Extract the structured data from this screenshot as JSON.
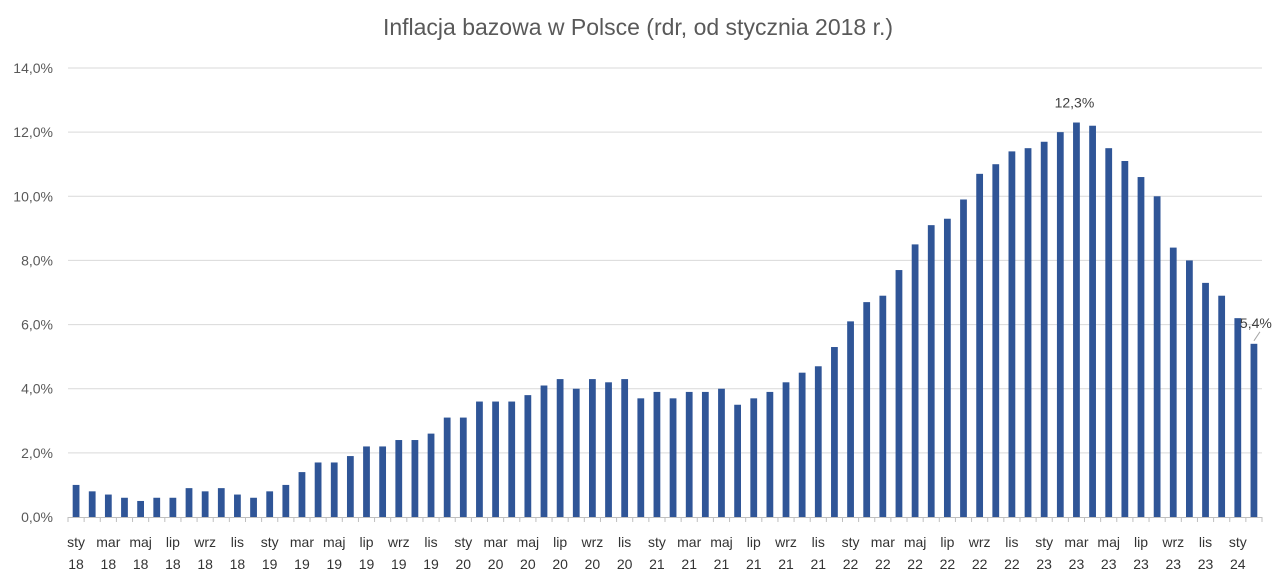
{
  "chart_data": {
    "type": "bar",
    "title": "Inflacja bazowa w Polsce (rdr, od stycznia 2018 r.)",
    "xlabel": "",
    "ylabel": "",
    "ylim": [
      0,
      14
    ],
    "y_ticks": [
      "0,0%",
      "2,0%",
      "4,0%",
      "6,0%",
      "8,0%",
      "10,0%",
      "12,0%",
      "14,0%"
    ],
    "grid": true,
    "legend": "none",
    "color": "#2f5597",
    "categories": [
      "2018-01",
      "2018-02",
      "2018-03",
      "2018-04",
      "2018-05",
      "2018-06",
      "2018-07",
      "2018-08",
      "2018-09",
      "2018-10",
      "2018-11",
      "2018-12",
      "2019-01",
      "2019-02",
      "2019-03",
      "2019-04",
      "2019-05",
      "2019-06",
      "2019-07",
      "2019-08",
      "2019-09",
      "2019-10",
      "2019-11",
      "2019-12",
      "2020-01",
      "2020-02",
      "2020-03",
      "2020-04",
      "2020-05",
      "2020-06",
      "2020-07",
      "2020-08",
      "2020-09",
      "2020-10",
      "2020-11",
      "2020-12",
      "2021-01",
      "2021-02",
      "2021-03",
      "2021-04",
      "2021-05",
      "2021-06",
      "2021-07",
      "2021-08",
      "2021-09",
      "2021-10",
      "2021-11",
      "2021-12",
      "2022-01",
      "2022-02",
      "2022-03",
      "2022-04",
      "2022-05",
      "2022-06",
      "2022-07",
      "2022-08",
      "2022-09",
      "2022-10",
      "2022-11",
      "2022-12",
      "2023-01",
      "2023-02",
      "2023-03",
      "2023-04",
      "2023-05",
      "2023-06",
      "2023-07",
      "2023-08",
      "2023-09",
      "2023-10",
      "2023-11",
      "2023-12",
      "2024-01",
      "2024-02"
    ],
    "values": [
      1.0,
      0.8,
      0.7,
      0.6,
      0.5,
      0.6,
      0.6,
      0.9,
      0.8,
      0.9,
      0.7,
      0.6,
      0.8,
      1.0,
      1.4,
      1.7,
      1.7,
      1.9,
      2.2,
      2.2,
      2.4,
      2.4,
      2.6,
      3.1,
      3.1,
      3.6,
      3.6,
      3.6,
      3.8,
      4.1,
      4.3,
      4.0,
      4.3,
      4.2,
      4.3,
      3.7,
      3.9,
      3.7,
      3.9,
      3.9,
      4.0,
      3.5,
      3.7,
      3.9,
      4.2,
      4.5,
      4.7,
      5.3,
      6.1,
      6.7,
      6.9,
      7.7,
      8.5,
      9.1,
      9.3,
      9.9,
      10.7,
      11.0,
      11.4,
      11.5,
      11.7,
      12.0,
      12.3,
      12.2,
      11.5,
      11.1,
      10.6,
      10.0,
      8.4,
      8.0,
      7.3,
      6.9,
      6.2,
      5.4
    ],
    "x_tick_labels": [
      {
        "month": "sty",
        "year": "18",
        "index": 0
      },
      {
        "month": "mar",
        "year": "18",
        "index": 2
      },
      {
        "month": "maj",
        "year": "18",
        "index": 4
      },
      {
        "month": "lip",
        "year": "18",
        "index": 6
      },
      {
        "month": "wrz",
        "year": "18",
        "index": 8
      },
      {
        "month": "lis",
        "year": "18",
        "index": 10
      },
      {
        "month": "sty",
        "year": "19",
        "index": 12
      },
      {
        "month": "mar",
        "year": "19",
        "index": 14
      },
      {
        "month": "maj",
        "year": "19",
        "index": 16
      },
      {
        "month": "lip",
        "year": "19",
        "index": 18
      },
      {
        "month": "wrz",
        "year": "19",
        "index": 20
      },
      {
        "month": "lis",
        "year": "19",
        "index": 22
      },
      {
        "month": "sty",
        "year": "20",
        "index": 24
      },
      {
        "month": "mar",
        "year": "20",
        "index": 26
      },
      {
        "month": "maj",
        "year": "20",
        "index": 28
      },
      {
        "month": "lip",
        "year": "20",
        "index": 30
      },
      {
        "month": "wrz",
        "year": "20",
        "index": 32
      },
      {
        "month": "lis",
        "year": "20",
        "index": 34
      },
      {
        "month": "sty",
        "year": "21",
        "index": 36
      },
      {
        "month": "mar",
        "year": "21",
        "index": 38
      },
      {
        "month": "maj",
        "year": "21",
        "index": 40
      },
      {
        "month": "lip",
        "year": "21",
        "index": 42
      },
      {
        "month": "wrz",
        "year": "21",
        "index": 44
      },
      {
        "month": "lis",
        "year": "21",
        "index": 46
      },
      {
        "month": "sty",
        "year": "22",
        "index": 48
      },
      {
        "month": "mar",
        "year": "22",
        "index": 50
      },
      {
        "month": "maj",
        "year": "22",
        "index": 52
      },
      {
        "month": "lip",
        "year": "22",
        "index": 54
      },
      {
        "month": "wrz",
        "year": "22",
        "index": 56
      },
      {
        "month": "lis",
        "year": "22",
        "index": 58
      },
      {
        "month": "sty",
        "year": "23",
        "index": 60
      },
      {
        "month": "mar",
        "year": "23",
        "index": 62
      },
      {
        "month": "maj",
        "year": "23",
        "index": 64
      },
      {
        "month": "lip",
        "year": "23",
        "index": 66
      },
      {
        "month": "wrz",
        "year": "23",
        "index": 68
      },
      {
        "month": "lis",
        "year": "23",
        "index": 70
      },
      {
        "month": "sty",
        "year": "24",
        "index": 72
      }
    ],
    "annotations": [
      {
        "text": "12,3%",
        "index": 62,
        "value": 12.3
      },
      {
        "text": "5,4%",
        "index": 73,
        "value": 5.4
      }
    ]
  }
}
